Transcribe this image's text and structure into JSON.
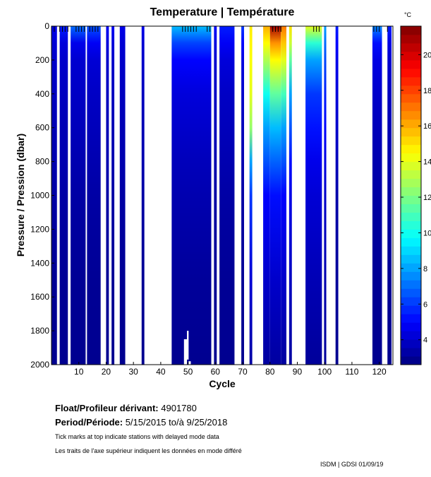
{
  "chart_data": {
    "type": "heatmap",
    "title": "Temperature | Température",
    "xlabel": "Cycle",
    "ylabel": "Pressure / Pression (dbar)",
    "xlim": [
      0,
      125
    ],
    "ylim": [
      2000,
      0
    ],
    "xticks": [
      10,
      20,
      30,
      40,
      50,
      60,
      70,
      80,
      90,
      100,
      110,
      120
    ],
    "yticks": [
      0,
      200,
      400,
      600,
      800,
      1000,
      1200,
      1400,
      1600,
      1800,
      2000
    ],
    "colorbar": {
      "label": "°C",
      "range": [
        2.6,
        21.6
      ],
      "ticks": [
        4,
        6,
        8,
        10,
        12,
        14,
        16,
        18,
        20
      ],
      "colormap": "jet"
    },
    "pressure_levels": [
      0,
      100,
      200,
      400,
      600,
      800,
      1000,
      1500,
      2000
    ],
    "columns": [
      {
        "cycles": [
          0,
          2
        ],
        "temps": [
          4.6,
          4.2,
          4.0,
          3.8,
          3.6,
          3.5,
          3.3,
          3.0,
          2.9
        ]
      },
      {
        "cycles": [
          3,
          6
        ],
        "temps": [
          5.5,
          4.3,
          4.0,
          3.8,
          3.6,
          3.5,
          3.3,
          3.0,
          2.9
        ]
      },
      {
        "cycles": [
          7,
          12.5
        ],
        "temps": [
          7.0,
          4.6,
          4.1,
          3.9,
          3.7,
          3.5,
          3.3,
          3.0,
          2.9
        ]
      },
      {
        "cycles": [
          13,
          18
        ],
        "temps": [
          6.5,
          4.8,
          4.2,
          3.9,
          3.7,
          3.5,
          3.3,
          3.0,
          2.9
        ]
      },
      {
        "cycles": [
          20,
          21
        ],
        "temps": [
          4.8,
          4.3,
          4.0,
          3.8,
          3.6,
          3.5,
          3.3,
          3.0,
          2.9
        ]
      },
      {
        "cycles": [
          22,
          23
        ],
        "temps": [
          4.8,
          4.3,
          4.0,
          3.8,
          3.6,
          3.5,
          3.3,
          3.0,
          2.9
        ]
      },
      {
        "cycles": [
          25,
          27
        ],
        "temps": [
          4.6,
          4.2,
          4.0,
          3.8,
          3.6,
          3.5,
          3.3,
          3.0,
          2.9
        ]
      },
      {
        "cycles": [
          33,
          34
        ],
        "temps": [
          4.6,
          4.2,
          4.0,
          3.8,
          3.6,
          3.5,
          3.3,
          3.0,
          2.9
        ]
      },
      {
        "cycles": [
          44,
          58.5
        ],
        "temps": [
          8.5,
          6.2,
          5.0,
          4.3,
          4.0,
          3.7,
          3.5,
          3.1,
          2.9
        ],
        "max_pressure": 2000
      },
      {
        "cycles": [
          59.5,
          60.5
        ],
        "temps": [
          5.0,
          4.4,
          4.1,
          3.9,
          3.7,
          3.5,
          3.3,
          3.0,
          2.9
        ]
      },
      {
        "cycles": [
          61.5,
          67
        ],
        "temps": [
          5.5,
          4.8,
          4.3,
          3.9,
          3.7,
          3.5,
          3.3,
          3.0,
          2.9
        ]
      },
      {
        "cycles": [
          69.5,
          70.5
        ],
        "temps": [
          6.0,
          5.0,
          4.4,
          4.0,
          3.7,
          3.5,
          3.3,
          3.0,
          2.9
        ]
      },
      {
        "cycles": [
          72.5,
          73.5
        ],
        "temps": [
          14.8,
          14.6,
          14.4,
          14.0,
          12.5,
          8.0,
          6.0,
          4.2,
          3.3
        ]
      },
      {
        "cycles": [
          77.5,
          80
        ],
        "temps": [
          16.0,
          14.5,
          13.0,
          10.0,
          8.0,
          6.5,
          5.0,
          4.0,
          3.2
        ]
      },
      {
        "cycles": [
          80,
          84
        ],
        "temps": [
          21.0,
          16.5,
          14.5,
          11.5,
          8.5,
          6.8,
          5.2,
          4.0,
          3.2
        ]
      },
      {
        "cycles": [
          84,
          86
        ],
        "temps": [
          17.0,
          15.5,
          14.0,
          11.0,
          8.0,
          6.5,
          5.0,
          4.0,
          3.2
        ]
      },
      {
        "cycles": [
          87,
          88
        ],
        "temps": [
          15.0,
          13.5,
          11.5,
          8.0,
          6.5,
          5.2,
          4.5,
          3.8,
          3.2
        ]
      },
      {
        "cycles": [
          93,
          99
        ],
        "temps": [
          14.0,
          10.5,
          8.0,
          6.0,
          5.3,
          4.6,
          4.2,
          3.6,
          3.1
        ]
      },
      {
        "cycles": [
          99.8,
          100.6
        ],
        "temps": [
          8.0,
          7.0,
          6.3,
          5.5,
          5.0,
          4.5,
          4.0,
          3.5,
          3.1
        ]
      },
      {
        "cycles": [
          104,
          105
        ],
        "temps": [
          5.5,
          5.0,
          4.6,
          4.3,
          4.0,
          3.7,
          3.4,
          3.1,
          2.9
        ]
      },
      {
        "cycles": [
          117.5,
          121
        ],
        "temps": [
          7.5,
          5.2,
          4.5,
          4.0,
          3.7,
          3.5,
          3.3,
          3.0,
          2.9
        ]
      },
      {
        "cycles": [
          123,
          124.5
        ],
        "temps": [
          5.5,
          4.5,
          4.1,
          3.8,
          3.6,
          3.5,
          3.3,
          3.0,
          2.9
        ]
      }
    ],
    "delayed_mode_ticks": [
      1,
      3,
      4,
      5,
      6,
      9,
      10,
      11,
      12,
      14,
      15,
      16,
      17,
      48,
      49,
      50,
      51,
      52,
      53,
      57,
      58,
      81,
      82,
      83,
      84,
      96,
      97,
      98,
      118,
      119,
      120,
      123
    ]
  },
  "info": {
    "float_label": "Float/Profileur dérivant:",
    "float_id": "4901780",
    "period_label": "Period/Période:",
    "period_start": "5/15/2015",
    "period_sep": "to/à",
    "period_end": "9/25/2018",
    "note_en": "Tick marks at top indicate stations with delayed mode data",
    "note_fr": "Les traits de l'axe supérieur indiquent les données en mode différé",
    "credit": "ISDM | GDSI 01/09/19"
  }
}
